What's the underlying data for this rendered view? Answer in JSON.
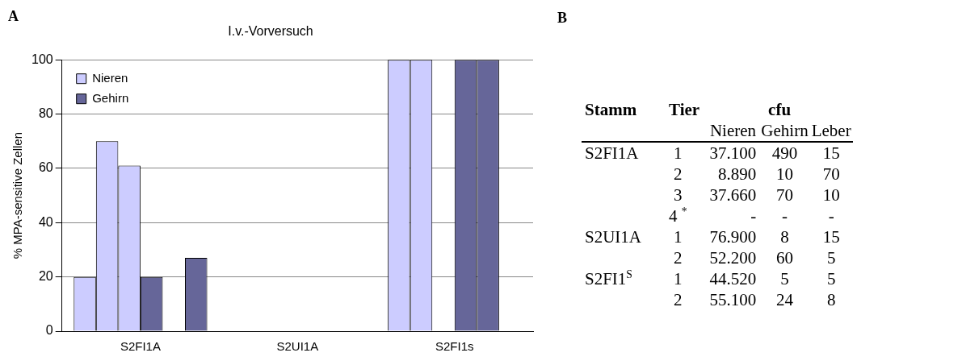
{
  "chart_data": [
    {
      "type": "bar",
      "title": "I.v.-Vorversuch",
      "ylabel": "% MPA-sensitive Zellen",
      "annotations": [
        "A"
      ],
      "categories": [
        "S2FI1A",
        "S2UI1A",
        "S2FI1s"
      ],
      "series": [
        {
          "name": "Nieren",
          "color": "#ccccff",
          "values": [
            20,
            0,
            100
          ]
        },
        {
          "color": "#ccccff",
          "values": [
            70,
            0,
            100
          ]
        },
        {
          "color": "#ccccff",
          "values": [
            61,
            null,
            null
          ]
        },
        {
          "name": "Gehirn",
          "color": "#666699",
          "values": [
            20,
            0,
            100
          ]
        },
        {
          "color": "#666699",
          "values": [
            null,
            0,
            100
          ]
        },
        {
          "color": "#666699",
          "values": [
            27,
            null,
            null
          ]
        }
      ],
      "ylim": [
        0,
        100
      ],
      "yticks": [
        0,
        20,
        40,
        60,
        80,
        100
      ],
      "grid": "y",
      "legend": "top left"
    },
    {
      "type": "other",
      "annotations": [
        "B"
      ],
      "ylabel": "Stamm",
      "y2label": "Tier",
      "xlabel": "cfu",
      "categories": [
        "Nieren",
        "Gehirn",
        "Leber"
      ],
      "y_categories": [
        "S2FI1A",
        null,
        null,
        null,
        "S2UI1A",
        null,
        "S2FI1$^{S}$",
        null
      ],
      "y2_categories": [
        "1",
        "2",
        "3",
        "4 $^{*}$",
        "1",
        "2",
        "1",
        "2"
      ],
      "cell_labels": [
        [
          "37.100",
          "490",
          "15"
        ],
        [
          "8.890",
          "10",
          "70"
        ],
        [
          "37.660",
          "70",
          "10"
        ],
        [
          "-",
          "-",
          "-"
        ],
        [
          "76.900",
          "8",
          "15"
        ],
        [
          "52.200",
          "60",
          "5"
        ],
        [
          "44.520",
          "5",
          "5"
        ],
        [
          "55.100",
          "24",
          "8"
        ]
      ]
    }
  ]
}
